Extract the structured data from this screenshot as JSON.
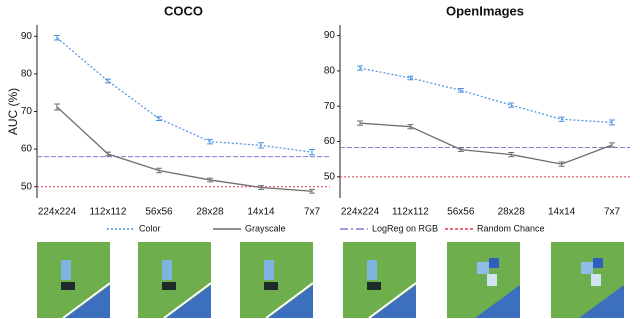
{
  "chart_data": [
    {
      "type": "line",
      "title": "COCO",
      "y_label": "AUC (%)",
      "categories": [
        "224x224",
        "112x112",
        "56x56",
        "28x28",
        "14x14",
        "7x7"
      ],
      "ylim": [
        47,
        93
      ],
      "yticks": [
        50,
        60,
        70,
        80,
        90
      ],
      "series": [
        {
          "name": "Color",
          "color": "#4a90e2",
          "values": [
            89.6,
            78.1,
            68.1,
            62.0,
            61.0,
            59.2
          ],
          "errors": [
            0.6,
            0.5,
            0.5,
            0.6,
            0.7,
            0.7
          ]
        },
        {
          "name": "Grayscale",
          "color": "#6e6e6e",
          "values": [
            71.2,
            58.7,
            54.3,
            51.8,
            49.8,
            48.8
          ],
          "errors": [
            0.8,
            0.5,
            0.6,
            0.5,
            0.5,
            0.5
          ]
        }
      ],
      "hlines": [
        {
          "name": "LogReg on RGB",
          "color": "#7b7fd6",
          "value": 58.0
        },
        {
          "name": "Random Chance",
          "color": "#e8394a",
          "value": 50
        }
      ]
    },
    {
      "type": "line",
      "title": "OpenImages",
      "categories": [
        "224x224",
        "112x112",
        "56x56",
        "28x28",
        "14x14",
        "7x7"
      ],
      "ylim": [
        44,
        93
      ],
      "yticks": [
        50,
        60,
        70,
        80,
        90
      ],
      "series": [
        {
          "color": "#4a90e2",
          "values": [
            80.8,
            78.0,
            74.5,
            70.3,
            66.3,
            65.4
          ],
          "errors": [
            0.6,
            0.5,
            0.5,
            0.6,
            0.6,
            0.7
          ]
        },
        {
          "color": "#6e6e6e",
          "values": [
            65.2,
            64.2,
            57.7,
            56.3,
            53.6,
            59.0
          ],
          "errors": [
            0.6,
            0.6,
            0.5,
            0.6,
            0.6,
            0.6
          ]
        }
      ],
      "hlines": [
        {
          "color": "#7b7fd6",
          "value": 58.3
        },
        {
          "color": "#e8394a",
          "value": 50
        }
      ]
    }
  ]
}
